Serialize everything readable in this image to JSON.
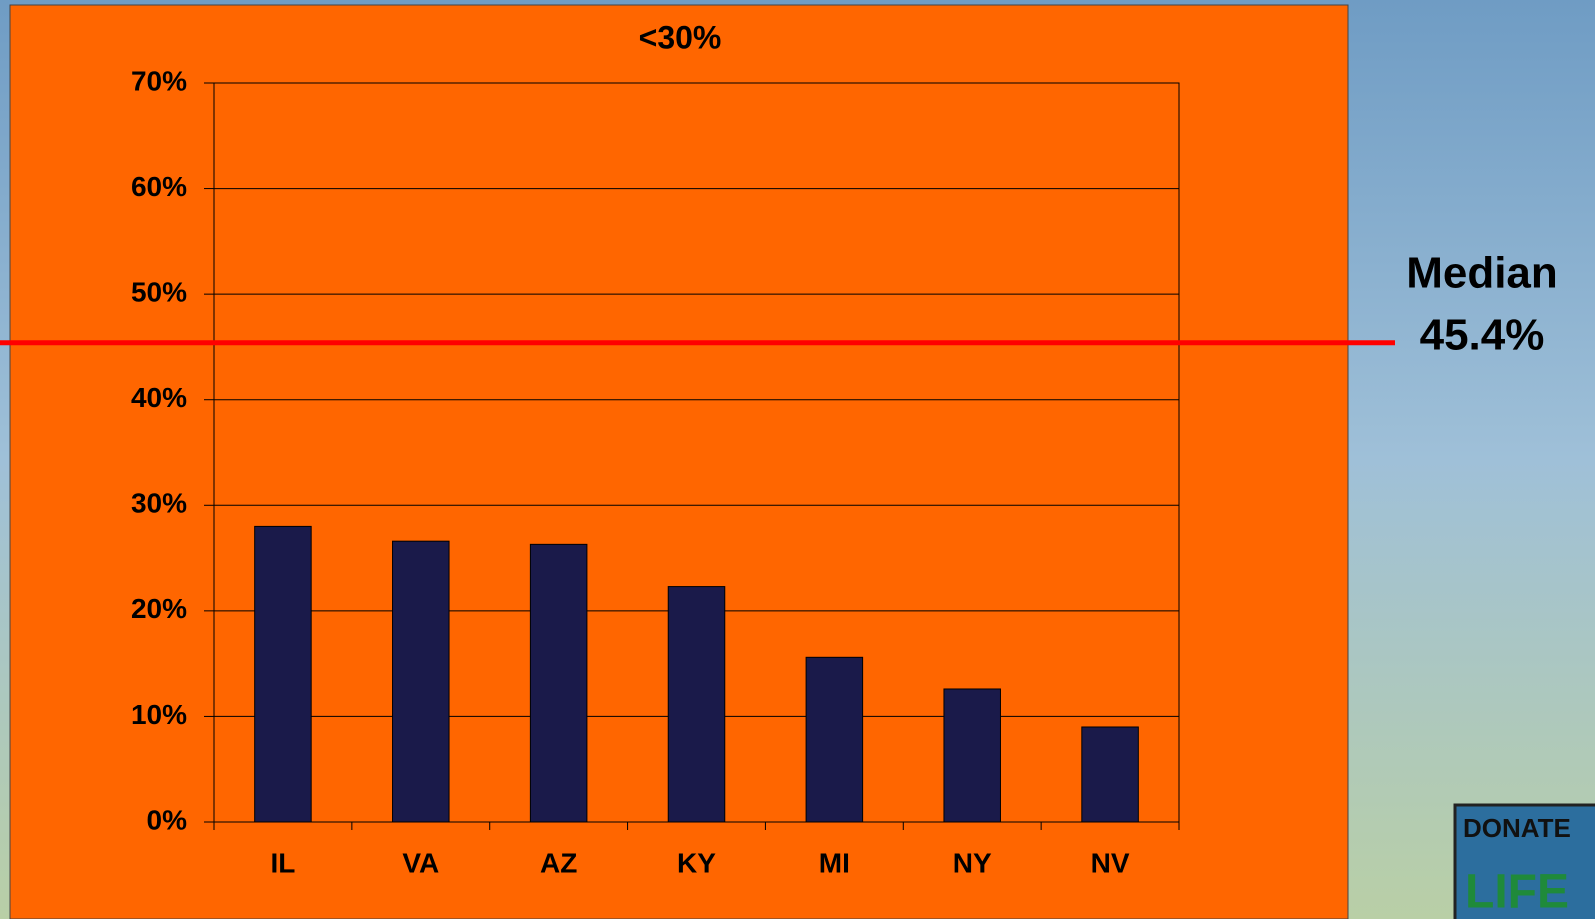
{
  "chart_data": {
    "type": "bar",
    "title": "<30%",
    "categories": [
      "IL",
      "VA",
      "AZ",
      "KY",
      "MI",
      "NY",
      "NV"
    ],
    "values": [
      28.0,
      26.6,
      26.3,
      22.3,
      15.6,
      12.6,
      9.0
    ],
    "color": "#1a1a4a",
    "ylim": [
      0,
      70
    ],
    "yticks": [
      {
        "value": 0,
        "label": "0%"
      },
      {
        "value": 10,
        "label": "10%"
      },
      {
        "value": 20,
        "label": "20%"
      },
      {
        "value": 30,
        "label": "30%"
      },
      {
        "value": 40,
        "label": "40%"
      },
      {
        "value": 50,
        "label": "50%"
      },
      {
        "value": 60,
        "label": "60%"
      },
      {
        "value": 70,
        "label": "70%"
      }
    ],
    "grid": true,
    "median_line": {
      "label": "Median",
      "value": 45.4,
      "value_label": "45.4%",
      "color": "#ff0000"
    }
  },
  "logo": {
    "top": "DONATE",
    "bottom": "LIFE"
  }
}
